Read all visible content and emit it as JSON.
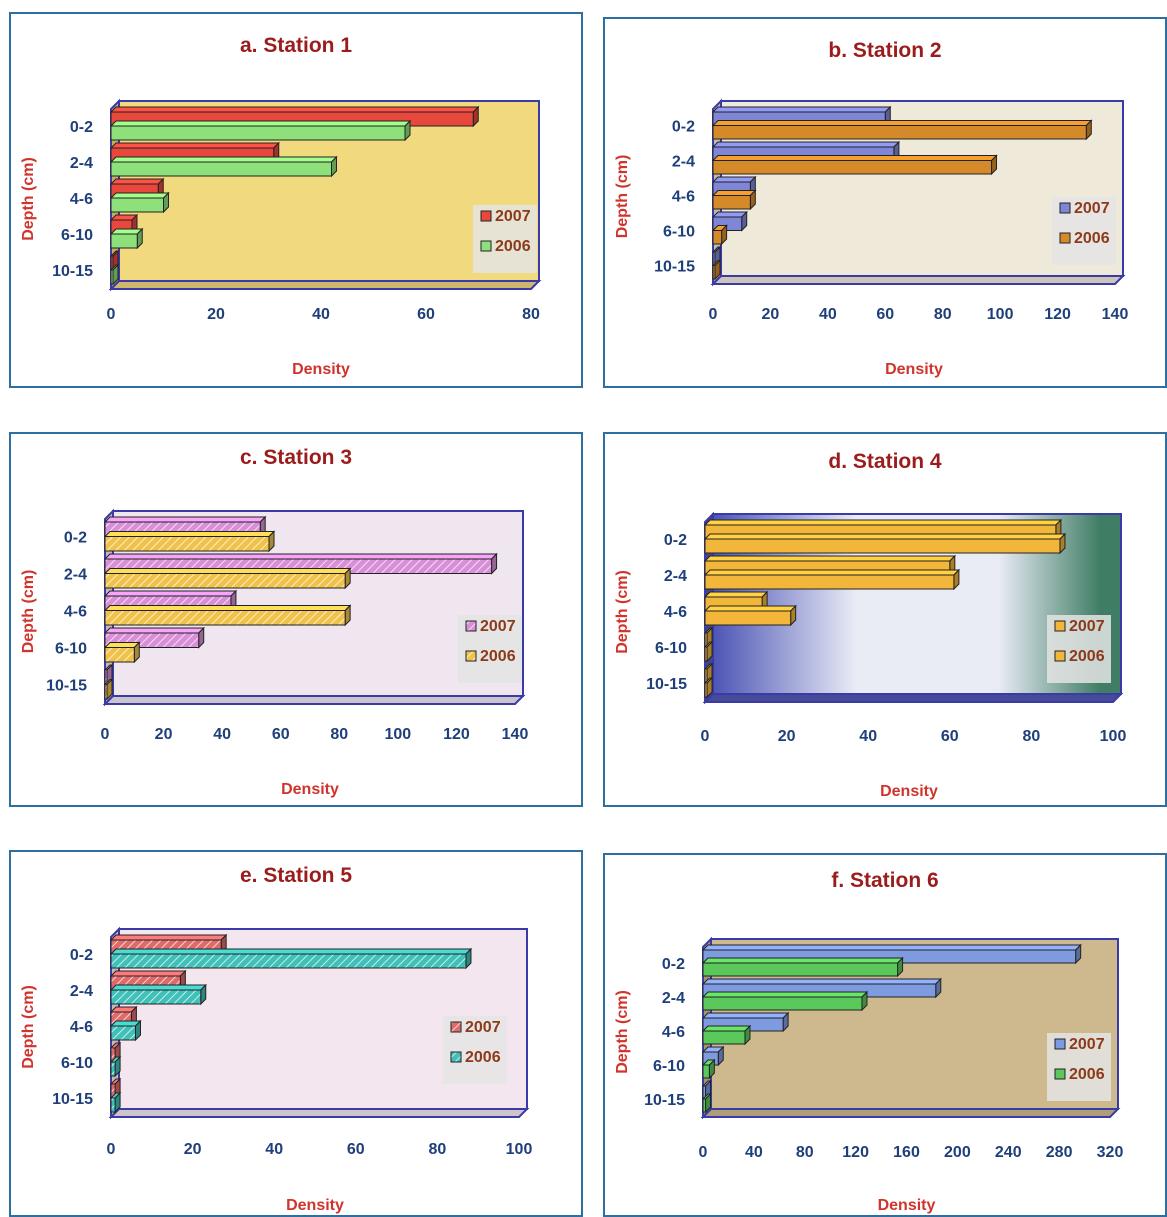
{
  "chart_data": [
    {
      "id": "s1",
      "type": "bar",
      "orientation": "horizontal",
      "title": "a. Station 1",
      "ylabel": "Depth (cm)",
      "xlabel": "Density",
      "categories": [
        "0-2",
        "2-4",
        "4-6",
        "6-10",
        "10-15"
      ],
      "xlim": [
        0,
        80
      ],
      "ticks": [
        0,
        20,
        40,
        60,
        80
      ],
      "legend_placement": "right",
      "floor_color": "#f1d97e",
      "series": [
        {
          "name": "2007",
          "values": [
            69,
            31,
            9,
            4,
            0.3
          ],
          "color": "#e8473c",
          "pattern": "solid"
        },
        {
          "name": "2006",
          "values": [
            56,
            42,
            10,
            5,
            0.3
          ],
          "color": "#8ee07a",
          "pattern": "solid"
        }
      ]
    },
    {
      "id": "s2",
      "type": "bar",
      "orientation": "horizontal",
      "title": "b. Station 2",
      "ylabel": "Depth (cm)",
      "xlabel": "Density",
      "categories": [
        "0-2",
        "2-4",
        "4-6",
        "6-10",
        "10-15"
      ],
      "xlim": [
        0,
        140
      ],
      "ticks": [
        0,
        20,
        40,
        60,
        80,
        100,
        120,
        140
      ],
      "legend_placement": "right",
      "floor_color": "#efe9da",
      "series": [
        {
          "name": "2007",
          "values": [
            60,
            63,
            13,
            10,
            0.5
          ],
          "color": "#7f86d6",
          "pattern": "solid"
        },
        {
          "name": "2006",
          "values": [
            130,
            97,
            13,
            3,
            0.5
          ],
          "color": "#d58a2a",
          "pattern": "solid"
        }
      ]
    },
    {
      "id": "s3",
      "type": "bar",
      "orientation": "horizontal",
      "title": "c. Station 3",
      "ylabel": "Depth (cm)",
      "xlabel": "Density",
      "categories": [
        "0-2",
        "2-4",
        "4-6",
        "6-10",
        "10-15"
      ],
      "xlim": [
        0,
        140
      ],
      "ticks": [
        0,
        20,
        40,
        60,
        80,
        100,
        120,
        140
      ],
      "legend_placement": "right",
      "floor_color": "#f0e6ef",
      "series": [
        {
          "name": "2007",
          "values": [
            53,
            132,
            43,
            32,
            0.5
          ],
          "color": "#d88fd8",
          "pattern": "hatch"
        },
        {
          "name": "2006",
          "values": [
            56,
            82,
            82,
            10,
            0.5
          ],
          "color": "#f0c24a",
          "pattern": "hatch"
        }
      ]
    },
    {
      "id": "s4",
      "type": "bar",
      "orientation": "horizontal",
      "title": "d. Station 4",
      "ylabel": "Depth (cm)",
      "xlabel": "Density",
      "categories": [
        "0-2",
        "2-4",
        "4-6",
        "6-10",
        "10-15"
      ],
      "xlim": [
        0,
        100
      ],
      "ticks": [
        0,
        20,
        40,
        60,
        80,
        100
      ],
      "legend_placement": "right",
      "floor_color": "#5158b0",
      "series": [
        {
          "name": "2007",
          "values": [
            86,
            60,
            14,
            0.5,
            0.5
          ],
          "color": "#f2b63a",
          "pattern": "solid"
        },
        {
          "name": "2006",
          "values": [
            87,
            61,
            21,
            0.5,
            0.5
          ],
          "color": "#f2b63a",
          "pattern": "solid"
        }
      ]
    },
    {
      "id": "s5",
      "type": "bar",
      "orientation": "horizontal",
      "title": "e. Station 5",
      "ylabel": "Depth (cm)",
      "xlabel": "Density",
      "categories": [
        "0-2",
        "2-4",
        "4-6",
        "6-10",
        "10-15"
      ],
      "xlim": [
        0,
        100
      ],
      "ticks": [
        0,
        20,
        40,
        60,
        80,
        100
      ],
      "legend_placement": "right",
      "floor_color": "#f3e6ee",
      "series": [
        {
          "name": "2007",
          "values": [
            27,
            17,
            5,
            1,
            1
          ],
          "color": "#e06a6a",
          "pattern": "hatch"
        },
        {
          "name": "2006",
          "values": [
            87,
            22,
            6,
            1,
            1
          ],
          "color": "#3fc0b8",
          "pattern": "hatch"
        }
      ]
    },
    {
      "id": "s6",
      "type": "bar",
      "orientation": "horizontal",
      "title": "f. Station 6",
      "ylabel": "Depth (cm)",
      "xlabel": "Density",
      "categories": [
        "0-2",
        "2-4",
        "4-6",
        "6-10",
        "10-15"
      ],
      "xlim": [
        0,
        320
      ],
      "ticks": [
        0,
        40,
        80,
        120,
        160,
        200,
        240,
        280,
        320
      ],
      "legend_placement": "right",
      "floor_color": "#cdb98d",
      "series": [
        {
          "name": "2007",
          "values": [
            293,
            183,
            63,
            12,
            2
          ],
          "color": "#7f9be0",
          "pattern": "solid"
        },
        {
          "name": "2006",
          "values": [
            153,
            125,
            33,
            5,
            2
          ],
          "color": "#5ac85a",
          "pattern": "solid"
        }
      ]
    }
  ]
}
